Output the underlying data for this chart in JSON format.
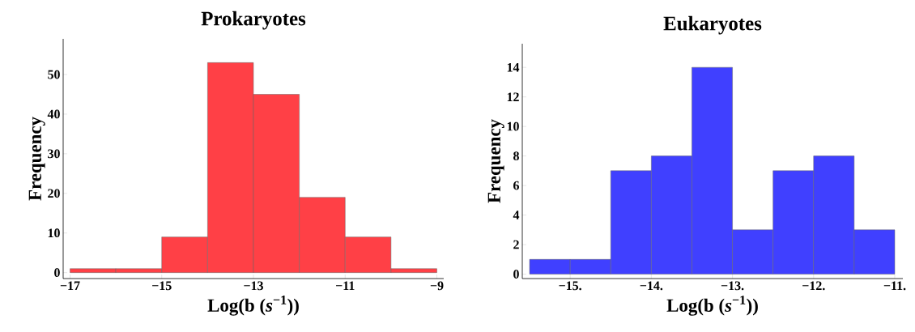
{
  "chart_data": [
    {
      "type": "histogram",
      "title": "Prokaryotes",
      "xlabel": "Log(b (*s*$^{−1}$))",
      "ylabel": "Frequency",
      "bins": [
        -17,
        -16,
        -15,
        -14,
        -13,
        -12,
        -11,
        -10,
        -9
      ],
      "values": [
        1,
        1,
        9,
        53,
        45,
        19,
        9,
        1
      ],
      "color": "#ff4046",
      "xlim": [
        -17.15,
        -8.85
      ],
      "ylim": [
        -1.5,
        59
      ],
      "xticks": [
        {
          "value": -17,
          "label": "−17"
        },
        {
          "value": -15,
          "label": "−15"
        },
        {
          "value": -13,
          "label": "−13"
        },
        {
          "value": -11,
          "label": "−11"
        },
        {
          "value": -9,
          "label": "−9"
        }
      ],
      "yticks": [
        0,
        10,
        20,
        30,
        40,
        50
      ]
    },
    {
      "type": "histogram",
      "title": "Eukaryotes",
      "xlabel": "Log(b (*s*$^{−1}$))",
      "ylabel": "Frequency",
      "bins": [
        -15.5,
        -15,
        -14.5,
        -14,
        -13.5,
        -13,
        -12.5,
        -12,
        -11.5,
        -11
      ],
      "values": [
        1,
        1,
        7,
        8,
        14,
        3,
        7,
        8,
        3
      ],
      "color": "#4040ff",
      "xlim": [
        -15.59,
        -10.9
      ],
      "ylim": [
        -0.3,
        15.6
      ],
      "xticks": [
        {
          "value": -15,
          "label": "−15."
        },
        {
          "value": -14,
          "label": "−14."
        },
        {
          "value": -13,
          "label": "−13."
        },
        {
          "value": -12,
          "label": "−12."
        },
        {
          "value": -11,
          "label": "−11."
        }
      ],
      "yticks": [
        0,
        2,
        4,
        6,
        8,
        10,
        12,
        14
      ]
    }
  ]
}
